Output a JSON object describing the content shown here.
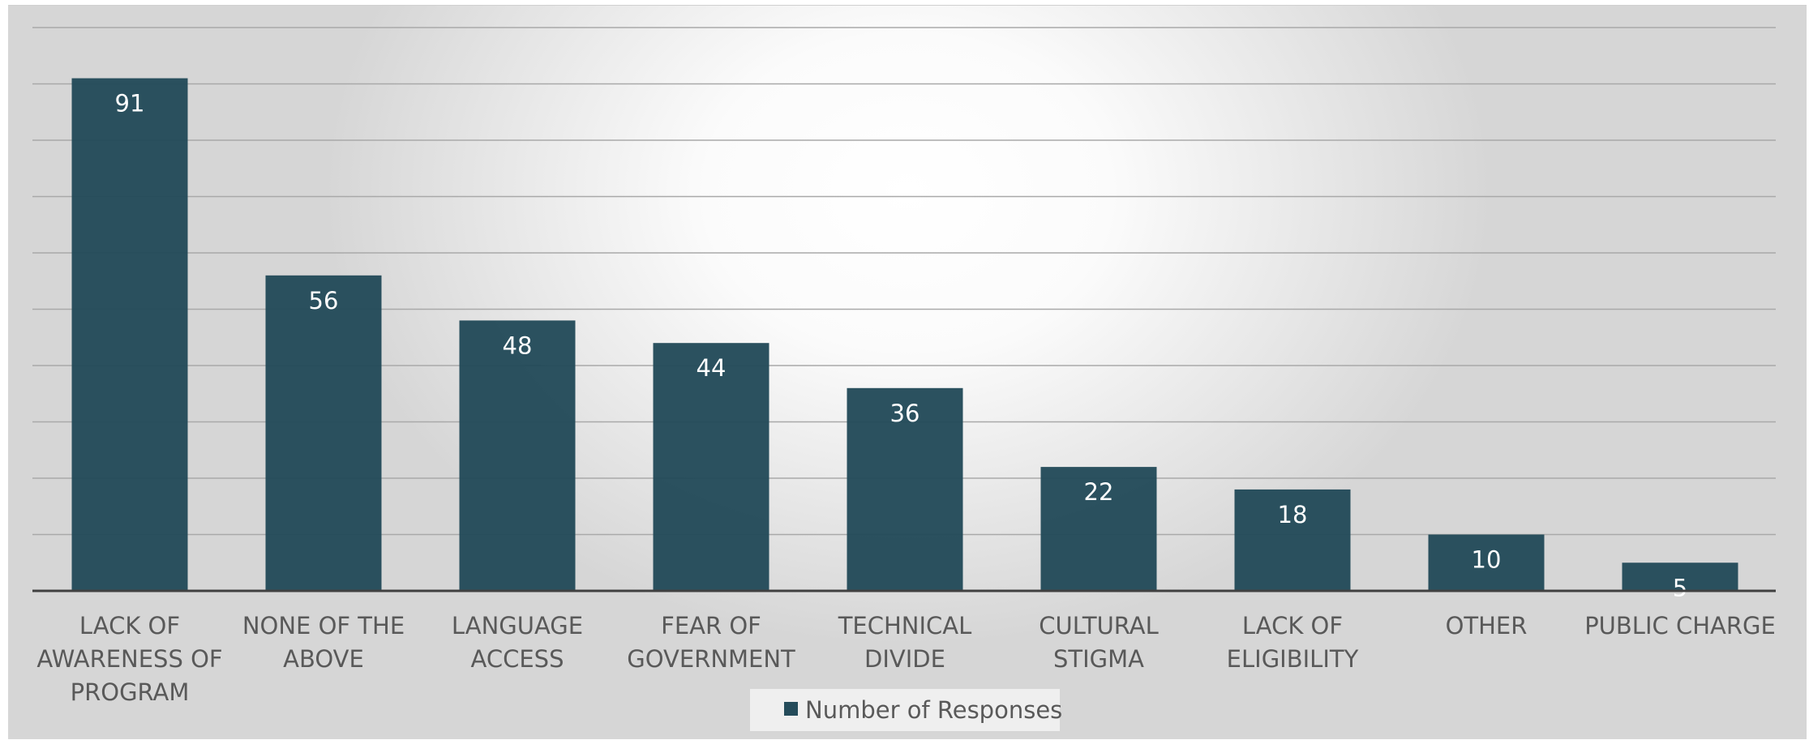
{
  "chart_data": {
    "type": "bar",
    "categories": [
      [
        "LACK OF",
        "AWARENESS OF",
        "PROGRAM"
      ],
      [
        "NONE OF THE",
        "ABOVE"
      ],
      [
        "LANGUAGE",
        "ACCESS"
      ],
      [
        "FEAR OF",
        "GOVERNMENT"
      ],
      [
        "TECHNICAL",
        "DIVIDE"
      ],
      [
        "CULTURAL",
        "STIGMA"
      ],
      [
        "LACK OF",
        "ELIGIBILITY"
      ],
      [
        "OTHER"
      ],
      [
        "PUBLIC CHARGE"
      ]
    ],
    "series": [
      {
        "name": "Number of Responses",
        "values": [
          91,
          56,
          48,
          44,
          36,
          22,
          18,
          10,
          5
        ]
      }
    ],
    "title": "",
    "xlabel": "",
    "ylabel": "",
    "ylim": [
      0,
      100
    ],
    "gridlines": true,
    "y_tick_labels_shown": false,
    "legend": "bottom",
    "colors": {
      "bar": "#244b5a",
      "grid": "#a9a9a9",
      "axis": "#404040"
    }
  }
}
